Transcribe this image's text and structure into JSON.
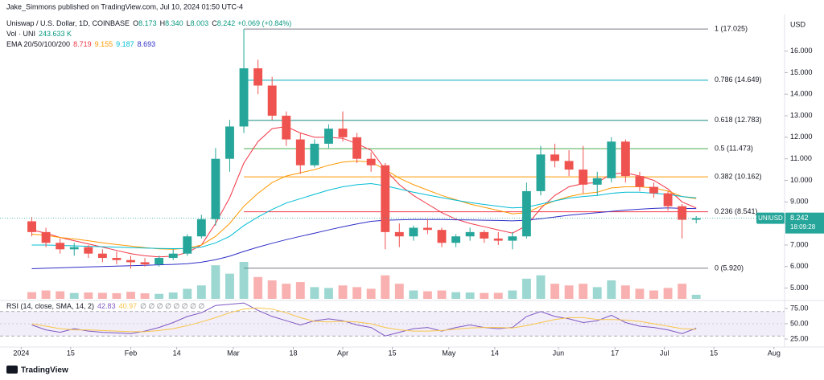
{
  "header": {
    "publisher": "Jake_Simmons published on TradingView.com, Jul 10, 2024 01:50 UTC-4",
    "ohlc": [
      {
        "letter": "O",
        "value": "8.173"
      },
      {
        "letter": "H",
        "value": "8.340"
      },
      {
        "letter": "L",
        "value": "8.003"
      },
      {
        "letter": "C",
        "value": "8.242"
      }
    ],
    "change": "+0.069 (+0.84%)",
    "volume_label": "Vol · UNI",
    "volume_value": "243.633 K",
    "ema_label": "EMA 20/50/100/200",
    "rsi_label": "RSI (14, close, SMA, 14, 2)",
    "rsi_placeholders": "∅ ∅ ∅ ∅ ∅ ∅ ∅ ∅",
    "currency": "USD",
    "badge_symbol": "UNIUSD",
    "badge_price": "8.242",
    "badge_countdown": "18:09:28",
    "logo": "TradingView"
  },
  "chart_data": [
    {
      "type": "candlestick",
      "title": "Uniswap / U.S. Dollar, 1D, COINBASE",
      "x": [
        "2024-01-04",
        "2024-01-08",
        "2024-01-12",
        "2024-01-16",
        "2024-01-20",
        "2024-01-24",
        "2024-01-28",
        "2024-02-01",
        "2024-02-05",
        "2024-02-09",
        "2024-02-13",
        "2024-02-17",
        "2024-02-21",
        "2024-02-25",
        "2024-02-29",
        "2024-03-04",
        "2024-03-08",
        "2024-03-12",
        "2024-03-16",
        "2024-03-20",
        "2024-03-24",
        "2024-03-28",
        "2024-04-01",
        "2024-04-05",
        "2024-04-09",
        "2024-04-13",
        "2024-04-17",
        "2024-04-21",
        "2024-04-25",
        "2024-04-29",
        "2024-05-03",
        "2024-05-07",
        "2024-05-11",
        "2024-05-15",
        "2024-05-19",
        "2024-05-23",
        "2024-05-27",
        "2024-05-31",
        "2024-06-04",
        "2024-06-08",
        "2024-06-12",
        "2024-06-16",
        "2024-06-20",
        "2024-06-24",
        "2024-06-28",
        "2024-07-02",
        "2024-07-06",
        "2024-07-10"
      ],
      "open": [
        8.1,
        7.6,
        7.1,
        6.8,
        6.9,
        6.6,
        6.4,
        6.3,
        6.2,
        6.1,
        6.4,
        6.6,
        7.4,
        8.2,
        11.0,
        12.5,
        15.2,
        14.4,
        13.0,
        11.9,
        10.7,
        11.7,
        12.4,
        12.0,
        11.0,
        10.7,
        7.6,
        7.4,
        7.8,
        7.7,
        7.1,
        7.4,
        7.6,
        7.3,
        7.2,
        7.4,
        9.5,
        11.2,
        10.9,
        10.5,
        9.8,
        10.1,
        11.8,
        10.2,
        9.7,
        9.4,
        8.8,
        8.173
      ],
      "high": [
        8.3,
        7.8,
        7.3,
        7.1,
        7.0,
        6.8,
        6.7,
        6.5,
        6.4,
        6.5,
        6.8,
        7.5,
        8.4,
        11.5,
        12.8,
        17.03,
        15.6,
        14.8,
        13.2,
        12.2,
        11.9,
        12.6,
        13.2,
        12.2,
        11.3,
        10.8,
        8.0,
        7.9,
        8.2,
        7.8,
        7.5,
        7.8,
        7.7,
        7.6,
        7.6,
        9.9,
        11.6,
        11.7,
        11.4,
        11.6,
        10.4,
        12.0,
        11.9,
        10.4,
        9.9,
        9.5,
        8.9,
        8.34
      ],
      "low": [
        7.4,
        6.9,
        6.6,
        6.5,
        6.4,
        6.2,
        6.1,
        5.9,
        6.0,
        6.0,
        6.3,
        6.5,
        7.3,
        7.9,
        10.4,
        12.2,
        14.0,
        12.8,
        11.6,
        10.3,
        10.6,
        11.5,
        11.8,
        10.8,
        10.4,
        6.8,
        6.9,
        7.2,
        7.5,
        6.9,
        6.9,
        7.2,
        7.1,
        7.0,
        6.8,
        7.3,
        9.3,
        10.6,
        10.2,
        9.4,
        9.3,
        9.9,
        9.9,
        9.5,
        9.2,
        8.6,
        7.3,
        8.003
      ],
      "close": [
        7.6,
        7.1,
        6.8,
        6.9,
        6.6,
        6.4,
        6.3,
        6.2,
        6.1,
        6.4,
        6.6,
        7.4,
        8.2,
        11.0,
        12.5,
        15.2,
        14.4,
        13.0,
        11.9,
        10.7,
        11.7,
        12.4,
        12.0,
        11.0,
        10.7,
        7.6,
        7.4,
        7.8,
        7.7,
        7.1,
        7.4,
        7.6,
        7.3,
        7.2,
        7.4,
        9.5,
        11.2,
        10.9,
        10.5,
        9.8,
        10.1,
        11.8,
        10.2,
        9.7,
        9.4,
        8.8,
        8.17,
        8.242
      ],
      "volume": [
        400,
        500,
        450,
        350,
        380,
        360,
        340,
        420,
        330,
        300,
        380,
        600,
        800,
        2000,
        1500,
        2200,
        1300,
        1100,
        900,
        1000,
        700,
        650,
        800,
        700,
        600,
        1400,
        900,
        500,
        450,
        500,
        400,
        380,
        350,
        360,
        500,
        1200,
        1400,
        900,
        800,
        900,
        700,
        1100,
        800,
        600,
        500,
        650,
        900,
        243.633
      ],
      "up_color": "#26a69a",
      "down_color": "#ef5350",
      "series": [
        {
          "name": "EMA 20",
          "color": "#f23645",
          "values": [
            7.7,
            7.55,
            7.35,
            7.2,
            7.05,
            6.9,
            6.75,
            6.6,
            6.5,
            6.45,
            6.48,
            6.65,
            7.0,
            8.0,
            9.2,
            10.8,
            11.8,
            12.4,
            12.5,
            12.2,
            12.0,
            12.0,
            11.95,
            11.7,
            11.4,
            10.5,
            9.8,
            9.3,
            8.9,
            8.5,
            8.2,
            8.0,
            7.85,
            7.7,
            7.55,
            7.9,
            8.7,
            9.3,
            9.7,
            9.85,
            9.9,
            10.3,
            10.35,
            10.2,
            10.0,
            9.6,
            9.0,
            8.719
          ]
        },
        {
          "name": "EMA 50",
          "color": "#ff9800",
          "values": [
            7.5,
            7.45,
            7.35,
            7.28,
            7.2,
            7.1,
            7.02,
            6.95,
            6.88,
            6.82,
            6.8,
            6.85,
            7.0,
            7.4,
            8.0,
            8.8,
            9.4,
            9.9,
            10.2,
            10.35,
            10.5,
            10.7,
            10.85,
            10.9,
            10.85,
            10.5,
            10.1,
            9.8,
            9.55,
            9.3,
            9.1,
            8.9,
            8.75,
            8.6,
            8.45,
            8.5,
            8.8,
            9.05,
            9.25,
            9.38,
            9.45,
            9.65,
            9.7,
            9.7,
            9.65,
            9.5,
            9.25,
            9.155
          ]
        },
        {
          "name": "EMA 100",
          "color": "#00bcd4",
          "values": [
            7.0,
            7.0,
            6.98,
            6.96,
            6.94,
            6.92,
            6.9,
            6.88,
            6.86,
            6.84,
            6.83,
            6.84,
            6.9,
            7.1,
            7.4,
            7.9,
            8.3,
            8.65,
            8.95,
            9.15,
            9.35,
            9.55,
            9.7,
            9.8,
            9.85,
            9.75,
            9.6,
            9.45,
            9.32,
            9.2,
            9.08,
            8.97,
            8.88,
            8.8,
            8.72,
            8.75,
            8.9,
            9.05,
            9.18,
            9.25,
            9.3,
            9.4,
            9.45,
            9.45,
            9.4,
            9.35,
            9.25,
            9.187
          ]
        },
        {
          "name": "EMA 200",
          "color": "#2e2ec8",
          "values": [
            5.9,
            5.92,
            5.94,
            5.96,
            5.98,
            6.0,
            6.02,
            6.04,
            6.06,
            6.08,
            6.1,
            6.13,
            6.2,
            6.32,
            6.48,
            6.7,
            6.9,
            7.08,
            7.25,
            7.4,
            7.55,
            7.7,
            7.85,
            7.98,
            8.1,
            8.15,
            8.17,
            8.18,
            8.18,
            8.18,
            8.17,
            8.16,
            8.15,
            8.14,
            8.12,
            8.15,
            8.22,
            8.3,
            8.38,
            8.44,
            8.5,
            8.56,
            8.62,
            8.66,
            8.7,
            8.72,
            8.7,
            8.693
          ]
        }
      ],
      "fib_start": "2024-03-04",
      "fib_levels": [
        {
          "label": "1 (17.025)",
          "value": 17.025,
          "color": "#787b86"
        },
        {
          "label": "0.786 (14.649)",
          "value": 14.649,
          "color": "#00acc1"
        },
        {
          "label": "0.618 (12.783)",
          "value": 12.783,
          "color": "#158a7e"
        },
        {
          "label": "0.5 (11.473)",
          "value": 11.473,
          "color": "#4caf50"
        },
        {
          "label": "0.382 (10.162)",
          "value": 10.162,
          "color": "#ff9800"
        },
        {
          "label": "0.236 (8.541)",
          "value": 8.541,
          "color": "#f23645"
        },
        {
          "label": "0 (5.920)",
          "value": 5.92,
          "color": "#787b86"
        }
      ],
      "xlim": [
        "2023-12-26",
        "2024-08-04"
      ],
      "xticks": [
        {
          "value": "2024-01-01",
          "label": "2024"
        },
        {
          "value": "2024-01-15",
          "label": "15"
        },
        {
          "value": "2024-02-01",
          "label": "Feb"
        },
        {
          "value": "2024-02-14",
          "label": "14"
        },
        {
          "value": "2024-03-01",
          "label": "Mar"
        },
        {
          "value": "2024-03-18",
          "label": "18"
        },
        {
          "value": "2024-04-01",
          "label": "Apr"
        },
        {
          "value": "2024-04-15",
          "label": "15"
        },
        {
          "value": "2024-05-01",
          "label": "May"
        },
        {
          "value": "2024-05-14",
          "label": "14"
        },
        {
          "value": "2024-06-01",
          "label": "Jun"
        },
        {
          "value": "2024-06-17",
          "label": "17"
        },
        {
          "value": "2024-07-01",
          "label": "Jul"
        },
        {
          "value": "2024-07-15",
          "label": "15"
        },
        {
          "value": "2024-08-01",
          "label": "Aug"
        }
      ],
      "ylim": [
        4.5,
        17.7
      ],
      "yticks": [
        {
          "value": 5,
          "label": "5.000"
        },
        {
          "value": 6,
          "label": "6.000"
        },
        {
          "value": 7,
          "label": "7.000"
        },
        {
          "value": 8,
          "label": "8.000"
        },
        {
          "value": 9,
          "label": "9.000"
        },
        {
          "value": 10,
          "label": "10.000"
        },
        {
          "value": 11,
          "label": "11.000"
        },
        {
          "value": 12,
          "label": "12.000"
        },
        {
          "value": 13,
          "label": "13.000"
        },
        {
          "value": 14,
          "label": "14.000"
        },
        {
          "value": 15,
          "label": "15.000"
        },
        {
          "value": 16,
          "label": "16.000"
        }
      ]
    },
    {
      "type": "line",
      "title": "RSI (14, close, SMA, 14, 2)",
      "series": [
        {
          "name": "RSI",
          "color": "#7e57c2",
          "values": [
            48,
            40,
            36,
            42,
            38,
            36,
            35,
            34,
            38,
            44,
            52,
            62,
            68,
            80,
            82,
            84,
            72,
            62,
            55,
            48,
            55,
            58,
            55,
            48,
            44,
            30,
            36,
            42,
            44,
            38,
            44,
            48,
            44,
            42,
            44,
            62,
            70,
            62,
            58,
            52,
            55,
            64,
            52,
            46,
            44,
            40,
            34,
            42.83
          ]
        },
        {
          "name": "SMA",
          "color": "#f7c548",
          "values": [
            50,
            46,
            42,
            40,
            40,
            39,
            38,
            37,
            37,
            39,
            42,
            47,
            53,
            60,
            68,
            74,
            76,
            74,
            68,
            60,
            54,
            53,
            54,
            53,
            50,
            44,
            40,
            38,
            38,
            39,
            41,
            43,
            44,
            44,
            43,
            47,
            52,
            57,
            60,
            60,
            57,
            57,
            56,
            54,
            50,
            46,
            42,
            40.97
          ]
        }
      ],
      "band": [
        30,
        70
      ],
      "band_color": "#7e57c2",
      "ylim": [
        14.5,
        85.5
      ],
      "yticks": [
        {
          "value": 25,
          "label": "25.00"
        },
        {
          "value": 50,
          "label": "50.00"
        },
        {
          "value": 75,
          "label": "75.00"
        }
      ]
    }
  ]
}
